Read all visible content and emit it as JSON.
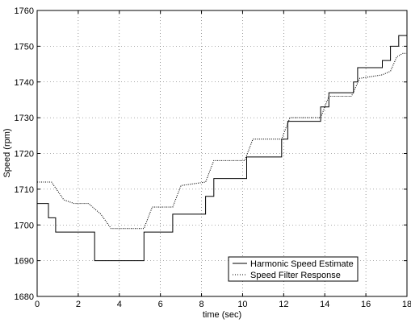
{
  "chart_data": {
    "type": "line",
    "title": "",
    "xlabel": "time (sec)",
    "ylabel": "Speed (rpm)",
    "xlim": [
      0,
      18
    ],
    "ylim": [
      1680,
      1760
    ],
    "xticks": [
      0,
      2,
      4,
      6,
      8,
      10,
      12,
      14,
      16,
      18
    ],
    "yticks": [
      1680,
      1690,
      1700,
      1710,
      1720,
      1730,
      1740,
      1750,
      1760
    ],
    "xtick_labels": [
      "0",
      "2",
      "4",
      "6",
      "8",
      "10",
      "12",
      "14",
      "16",
      "18"
    ],
    "ytick_labels": [
      "1680",
      "1690",
      "1700",
      "1710",
      "1720",
      "1730",
      "1740",
      "1750",
      "1760"
    ],
    "grid": true,
    "legend_position": "bottom-right",
    "series": [
      {
        "name": "Harmonic Speed Estimate",
        "style": "solid",
        "color": "#000000",
        "x": [
          0,
          0.55,
          0.55,
          0.9,
          0.9,
          1.0,
          1.0,
          2.8,
          2.8,
          5.2,
          5.2,
          6.6,
          6.6,
          7.2,
          7.2,
          8.2,
          8.2,
          8.6,
          8.6,
          10.2,
          10.2,
          11.9,
          11.9,
          12.2,
          12.2,
          13.8,
          13.8,
          14.2,
          14.2,
          15.4,
          15.4,
          15.6,
          15.6,
          16.8,
          16.8,
          17.2,
          17.2,
          17.6,
          17.6,
          18
        ],
        "y": [
          1706,
          1706,
          1702,
          1702,
          1698,
          1698,
          1698,
          1698,
          1690,
          1690,
          1698,
          1698,
          1703,
          1703,
          1703,
          1703,
          1708,
          1708,
          1713,
          1713,
          1719,
          1719,
          1724,
          1724,
          1729,
          1729,
          1733,
          1733,
          1737,
          1737,
          1740,
          1740,
          1744,
          1744,
          1746,
          1746,
          1750,
          1750,
          1753,
          1753
        ]
      },
      {
        "name": "Speed Filter Response",
        "style": "dotted",
        "color": "#000000",
        "x": [
          0,
          0.7,
          1.3,
          1.8,
          2.5,
          3.1,
          3.6,
          5.2,
          5.6,
          6.6,
          7.0,
          8.2,
          8.6,
          10.1,
          10.5,
          11.9,
          12.3,
          13.8,
          14.2,
          15.3,
          15.7,
          16.8,
          17.2,
          17.5,
          17.8,
          18
        ],
        "y": [
          1712,
          1712,
          1707,
          1706,
          1706,
          1703,
          1699,
          1699,
          1705,
          1705,
          1711,
          1712,
          1718,
          1718,
          1724,
          1724,
          1730,
          1730,
          1736,
          1736,
          1741,
          1742,
          1743,
          1747,
          1748,
          1748
        ]
      }
    ]
  }
}
